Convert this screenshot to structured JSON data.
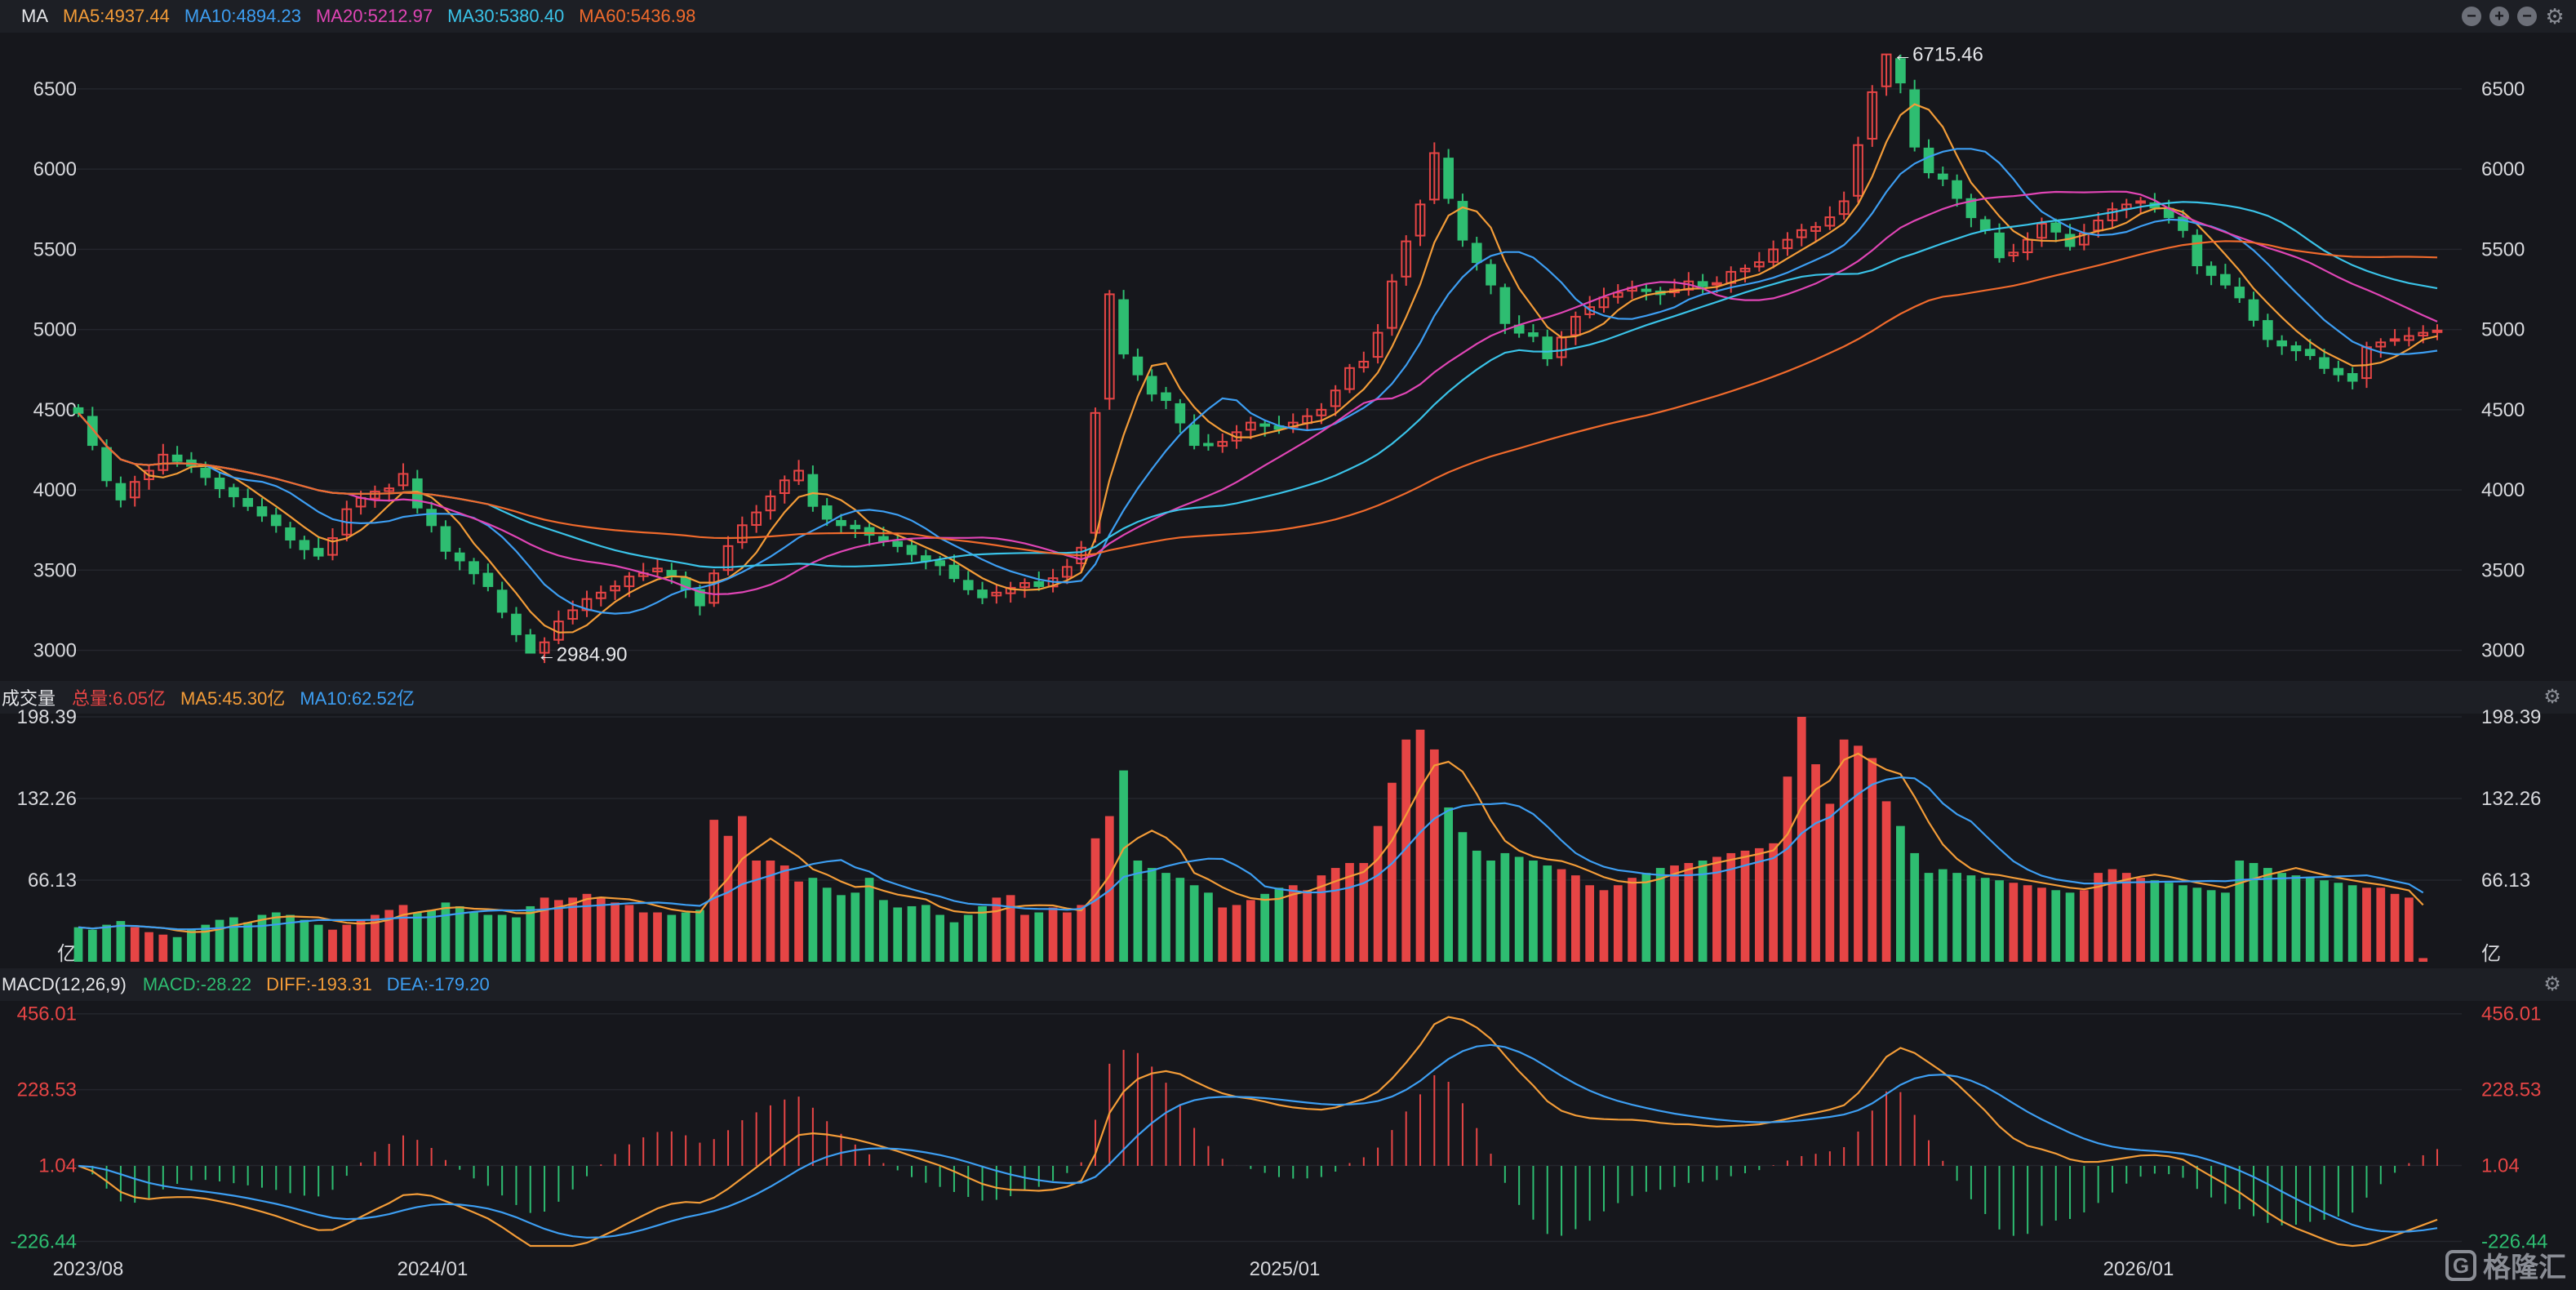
{
  "colors": {
    "up": "#e64545",
    "down": "#2ebd71",
    "ma5": "#f39c38",
    "ma10": "#3d9ef2",
    "ma20": "#e045b5",
    "ma30": "#3ac3e8",
    "ma60": "#f06a2c",
    "axis": "#d8d9dd",
    "grid": "#24262d",
    "diff": "#f39c38",
    "dea": "#3d9ef2",
    "pos": "#e64545",
    "neg": "#2ebd71"
  },
  "price_header": {
    "title": "MA",
    "ma5": "MA5:4937.44",
    "ma10": "MA10:4894.23",
    "ma20": "MA20:5212.97",
    "ma30": "MA30:5380.40",
    "ma60": "MA60:5436.98"
  },
  "volume_header": {
    "title": "成交量",
    "total": "总量:6.05亿",
    "ma5": "MA5:45.30亿",
    "ma10": "MA10:62.52亿"
  },
  "macd_header": {
    "title": "MACD(12,26,9)",
    "macd": "MACD:-28.22",
    "diff": "DIFF:-193.31",
    "dea": "DEA:-179.20"
  },
  "window_controls": [
    "minus-icon",
    "plus-icon",
    "minus-icon",
    "gear-icon"
  ],
  "watermark": "格隆汇",
  "chart_data": [
    {
      "type": "candlestick",
      "price_axis": {
        "ticks": [
          "3000",
          "3500",
          "4000",
          "4500",
          "5000",
          "5500",
          "6000",
          "6500"
        ],
        "ylim": [
          2850,
          6800
        ]
      },
      "x_ticks": [
        "2023/08",
        "2024/01",
        "2025/01",
        "2026/01"
      ],
      "annotations": {
        "high": "←6715.46",
        "low": "←2984.90"
      },
      "close": [
        4480,
        4280,
        4060,
        3940,
        4050,
        4120,
        4220,
        4180,
        4150,
        4080,
        4010,
        3960,
        3900,
        3840,
        3780,
        3690,
        3630,
        3590,
        3700,
        3880,
        3950,
        3990,
        4010,
        4100,
        3890,
        3780,
        3620,
        3560,
        3480,
        3400,
        3240,
        3100,
        2984.9,
        3050,
        3180,
        3250,
        3320,
        3360,
        3400,
        3460,
        3480,
        3510,
        3460,
        3380,
        3280,
        3480,
        3650,
        3780,
        3860,
        3960,
        4060,
        4120,
        3900,
        3820,
        3780,
        3760,
        3720,
        3680,
        3650,
        3600,
        3560,
        3530,
        3450,
        3380,
        3330,
        3360,
        3390,
        3420,
        3400,
        3450,
        3520,
        3640,
        4480,
        5220,
        4850,
        4720,
        4600,
        4560,
        4420,
        4280,
        4280,
        4300,
        4360,
        4420,
        4400,
        4380,
        4420,
        4460,
        4500,
        4620,
        4760,
        4800,
        4980,
        5300,
        5550,
        5780,
        6100,
        5820,
        5560,
        5420,
        5280,
        5040,
        4980,
        4960,
        4820,
        4950,
        5080,
        5140,
        5200,
        5230,
        5260,
        5240,
        5220,
        5250,
        5300,
        5270,
        5290,
        5360,
        5380,
        5420,
        5500,
        5560,
        5620,
        5640,
        5700,
        5800,
        6150,
        6480,
        6715.46,
        6540,
        6140,
        5980,
        5940,
        5820,
        5700,
        5620,
        5450,
        5480,
        5560,
        5660,
        5610,
        5520,
        5600,
        5680,
        5750,
        5780,
        5800,
        5760,
        5700,
        5620,
        5400,
        5340,
        5280,
        5200,
        5060,
        4940,
        4900,
        4870,
        4840,
        4760,
        4720,
        4680,
        4890,
        4920,
        4940,
        4960,
        4980,
        4994
      ]
    },
    {
      "type": "bar",
      "name": "volume",
      "axis_ticks": [
        "198.39",
        "132.26",
        "66.13"
      ],
      "ylim": [
        0,
        198.39
      ],
      "unit": "亿",
      "values": [
        28,
        26,
        30,
        33,
        28,
        24,
        22,
        20,
        26,
        30,
        34,
        36,
        32,
        38,
        40,
        38,
        34,
        30,
        26,
        30,
        34,
        38,
        42,
        46,
        40,
        42,
        48,
        45,
        40,
        38,
        38,
        36,
        45,
        52,
        50,
        52,
        55,
        52,
        48,
        46,
        40,
        40,
        38,
        40,
        42,
        115,
        102,
        118,
        82,
        82,
        78,
        65,
        68,
        60,
        54,
        56,
        68,
        50,
        44,
        45,
        46,
        38,
        32,
        38,
        45,
        52,
        54,
        38,
        40,
        44,
        40,
        46,
        100,
        118,
        155,
        82,
        76,
        72,
        68,
        62,
        56,
        44,
        46,
        50,
        55,
        60,
        62,
        58,
        70,
        76,
        80,
        80,
        110,
        145,
        180,
        188,
        172,
        125,
        105,
        90,
        82,
        88,
        85,
        82,
        78,
        75,
        70,
        62,
        58,
        62,
        68,
        72,
        76,
        78,
        80,
        82,
        85,
        88,
        90,
        92,
        96,
        150,
        200,
        160,
        128,
        180,
        175,
        165,
        130,
        110,
        88,
        72,
        75,
        72,
        70,
        68,
        66,
        64,
        62,
        60,
        58,
        56,
        58,
        72,
        75,
        72,
        68,
        66,
        64,
        62,
        60,
        58,
        56,
        82,
        80,
        76,
        72,
        70,
        68,
        66,
        64,
        62,
        60,
        60,
        55,
        52,
        3
      ]
    },
    {
      "type": "macd",
      "axis_ticks": [
        "456.01",
        "228.53",
        "1.04",
        "-226.44"
      ],
      "ylim": [
        -240,
        470
      ]
    }
  ]
}
